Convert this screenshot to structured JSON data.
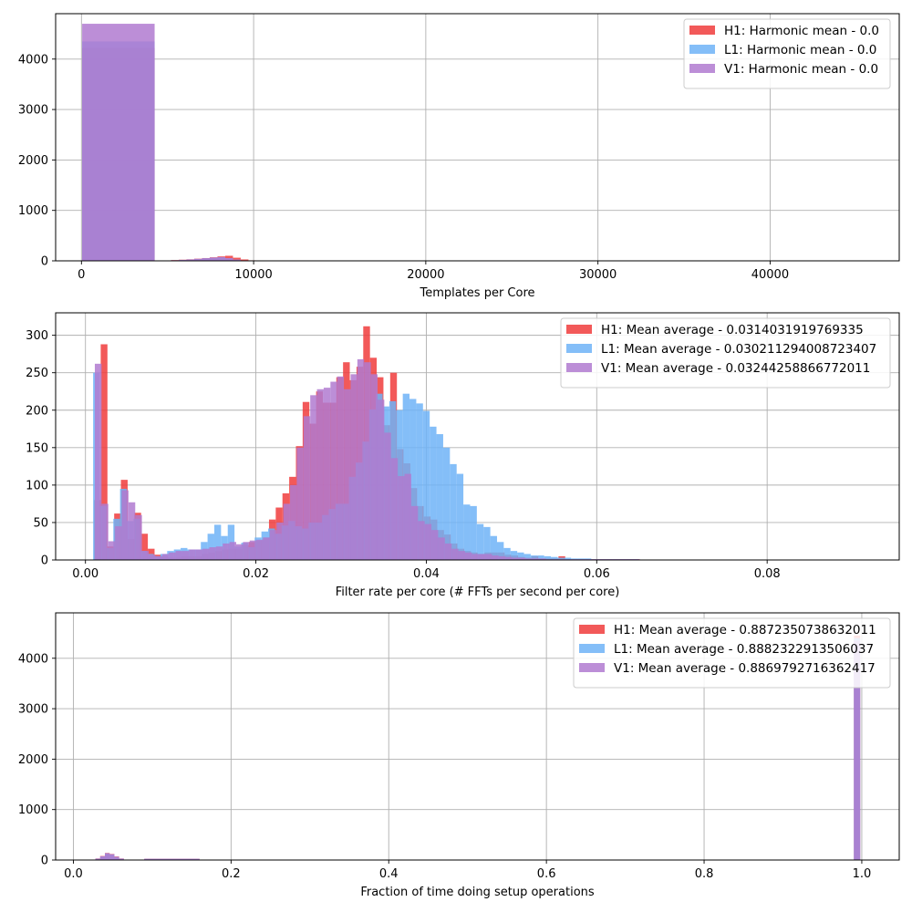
{
  "colors": {
    "H1": "#f03c3c",
    "L1": "#6fb3f7",
    "V1": "#b07ad0"
  },
  "chart_data": [
    {
      "type": "bar",
      "histogram": true,
      "xlabel": "Templates per Core",
      "ylabel": "",
      "xlim": [
        -1500,
        47500
      ],
      "ylim": [
        0,
        4900
      ],
      "xticks": [
        0,
        10000,
        20000,
        30000,
        40000
      ],
      "yticks": [
        0,
        1000,
        2000,
        3000,
        4000
      ],
      "grid": true,
      "legend_position": "top-right",
      "series": [
        {
          "name": "H1: Harmonic mean  - 0.0",
          "color": "#f03c3c",
          "bins": [
            [
              40,
              4250,
              4220
            ],
            [
              4750,
              5200,
              8
            ],
            [
              5200,
              5650,
              15
            ],
            [
              5650,
              6100,
              22
            ],
            [
              6100,
              6550,
              30
            ],
            [
              6550,
              7000,
              42
            ],
            [
              7000,
              7450,
              55
            ],
            [
              7450,
              7900,
              70
            ],
            [
              7900,
              8350,
              88
            ],
            [
              8350,
              8800,
              100
            ],
            [
              8800,
              9250,
              62
            ],
            [
              9250,
              9700,
              28
            ],
            [
              9700,
              10100,
              10
            ]
          ]
        },
        {
          "name": "L1: Harmonic mean  - 0.0",
          "color": "#6fb3f7",
          "bins": [
            [
              40,
              4250,
              4350
            ],
            [
              5200,
              5650,
              10
            ],
            [
              5650,
              6100,
              18
            ],
            [
              6100,
              6550,
              26
            ],
            [
              6550,
              7000,
              36
            ],
            [
              7000,
              7450,
              50
            ],
            [
              7450,
              7900,
              62
            ],
            [
              7900,
              8350,
              72
            ],
            [
              8350,
              8800,
              50
            ],
            [
              8800,
              9250,
              22
            ],
            [
              9250,
              9700,
              8
            ]
          ]
        },
        {
          "name": "V1: Harmonic mean  - 0.0",
          "color": "#b07ad0",
          "bins": [
            [
              40,
              4250,
              4700
            ],
            [
              5200,
              5650,
              12
            ],
            [
              5650,
              6100,
              20
            ],
            [
              6100,
              6550,
              28
            ],
            [
              6550,
              7000,
              40
            ],
            [
              7000,
              7450,
              52
            ],
            [
              7450,
              7900,
              65
            ],
            [
              7900,
              8350,
              75
            ],
            [
              8350,
              8800,
              55
            ],
            [
              8800,
              9250,
              25
            ],
            [
              9250,
              9700,
              10
            ]
          ]
        }
      ]
    },
    {
      "type": "bar",
      "histogram": true,
      "xlabel": "Filter rate per core (# FFTs per second per core)",
      "ylabel": "",
      "xlim": [
        -0.0035,
        0.0955
      ],
      "ylim": [
        0,
        330
      ],
      "xticks": [
        0.0,
        0.02,
        0.04,
        0.06,
        0.08
      ],
      "xtick_labels": [
        "0.00",
        "0.02",
        "0.04",
        "0.06",
        "0.08"
      ],
      "yticks": [
        0,
        50,
        100,
        150,
        200,
        250,
        300
      ],
      "grid": true,
      "legend_position": "top-right",
      "series": [
        {
          "name": "H1: Mean average - 0.0314031919769335",
          "color": "#f03c3c",
          "bin_start": 0.001,
          "bin_width": 0.00079,
          "values": [
            80,
            288,
            18,
            62,
            107,
            28,
            63,
            35,
            15,
            7,
            5,
            3,
            3,
            5,
            5,
            5,
            8,
            10,
            12,
            14,
            15,
            15,
            20,
            24,
            26,
            30,
            54,
            70,
            89,
            111,
            152,
            211,
            182,
            225,
            210,
            210,
            244,
            264,
            240,
            258,
            312,
            270,
            244,
            180,
            250,
            148,
            129,
            96,
            72,
            58,
            54,
            40,
            34,
            22,
            15,
            12,
            10,
            8,
            10,
            10,
            10,
            7,
            6,
            4,
            3,
            5,
            2,
            2,
            2,
            5,
            1,
            1,
            1,
            1,
            1,
            1,
            1,
            1,
            1,
            1,
            1
          ]
        },
        {
          "name": "L1: Mean average - 0.030211294008723407",
          "color": "#6fb3f7",
          "bin_start": 0.0009,
          "bin_width": 0.00079,
          "values": [
            250,
            72,
            16,
            55,
            95,
            52,
            55,
            12,
            8,
            5,
            8,
            12,
            14,
            16,
            14,
            14,
            24,
            35,
            47,
            32,
            47,
            18,
            23,
            17,
            30,
            38,
            42,
            35,
            46,
            52,
            45,
            42,
            50,
            50,
            60,
            68,
            75,
            75,
            111,
            130,
            158,
            201,
            222,
            205,
            212,
            200,
            222,
            215,
            209,
            199,
            178,
            168,
            150,
            128,
            115,
            74,
            72,
            48,
            44,
            32,
            24,
            16,
            12,
            10,
            8,
            6,
            6,
            5,
            4,
            3,
            3,
            2,
            2,
            2,
            1,
            1,
            1,
            1,
            1,
            1,
            1
          ]
        },
        {
          "name": "V1: Mean average - 0.03244258866772011",
          "color": "#b07ad0",
          "bin_start": 0.0011,
          "bin_width": 0.00079,
          "values": [
            262,
            75,
            25,
            45,
            93,
            77,
            60,
            12,
            7,
            5,
            8,
            10,
            12,
            12,
            14,
            14,
            15,
            17,
            18,
            22,
            24,
            21,
            24,
            26,
            27,
            30,
            40,
            50,
            75,
            100,
            150,
            192,
            220,
            228,
            230,
            238,
            245,
            228,
            248,
            268,
            264,
            248,
            214,
            170,
            136,
            112,
            115,
            72,
            52,
            48,
            40,
            30,
            22,
            15,
            12,
            10,
            8,
            8,
            8,
            6,
            5,
            4,
            3,
            3,
            2,
            2,
            2,
            1,
            1,
            1,
            1,
            1,
            1,
            1,
            1,
            1,
            1,
            1,
            1,
            1,
            1
          ]
        }
      ]
    },
    {
      "type": "bar",
      "histogram": true,
      "xlabel": "Fraction of time doing setup operations",
      "ylabel": "",
      "xlim": [
        -0.0225,
        1.0475
      ],
      "ylim": [
        0,
        4900
      ],
      "xticks": [
        0.0,
        0.2,
        0.4,
        0.6,
        0.8,
        1.0
      ],
      "xtick_labels": [
        "0.0",
        "0.2",
        "0.4",
        "0.6",
        "0.8",
        "1.0"
      ],
      "yticks": [
        0,
        1000,
        2000,
        3000,
        4000
      ],
      "grid": true,
      "legend_position": "top-right",
      "series": [
        {
          "name": "H1: Mean average - 0.8872350738632011",
          "color": "#f03c3c",
          "bins": [
            [
              0.028,
              0.034,
              30
            ],
            [
              0.034,
              0.04,
              80
            ],
            [
              0.04,
              0.046,
              140
            ],
            [
              0.046,
              0.052,
              120
            ],
            [
              0.052,
              0.058,
              70
            ],
            [
              0.058,
              0.064,
              30
            ],
            [
              0.064,
              0.09,
              8
            ],
            [
              0.09,
              0.16,
              25
            ],
            [
              0.16,
              0.3,
              8
            ],
            [
              0.99,
              0.998,
              4450
            ]
          ]
        },
        {
          "name": "L1: Mean average - 0.8882322913506037",
          "color": "#6fb3f7",
          "bins": [
            [
              0.028,
              0.034,
              25
            ],
            [
              0.034,
              0.04,
              70
            ],
            [
              0.04,
              0.046,
              130
            ],
            [
              0.046,
              0.052,
              110
            ],
            [
              0.052,
              0.058,
              60
            ],
            [
              0.058,
              0.064,
              25
            ],
            [
              0.064,
              0.09,
              8
            ],
            [
              0.09,
              0.16,
              22
            ],
            [
              0.16,
              0.3,
              8
            ],
            [
              0.99,
              0.998,
              4400
            ]
          ]
        },
        {
          "name": "V1: Mean average - 0.8869792716362417",
          "color": "#b07ad0",
          "bins": [
            [
              0.028,
              0.034,
              28
            ],
            [
              0.034,
              0.04,
              75
            ],
            [
              0.04,
              0.046,
              135
            ],
            [
              0.046,
              0.052,
              115
            ],
            [
              0.052,
              0.058,
              65
            ],
            [
              0.058,
              0.064,
              28
            ],
            [
              0.064,
              0.09,
              8
            ],
            [
              0.09,
              0.16,
              24
            ],
            [
              0.16,
              0.3,
              8
            ],
            [
              0.99,
              0.998,
              4350
            ]
          ]
        }
      ]
    }
  ]
}
